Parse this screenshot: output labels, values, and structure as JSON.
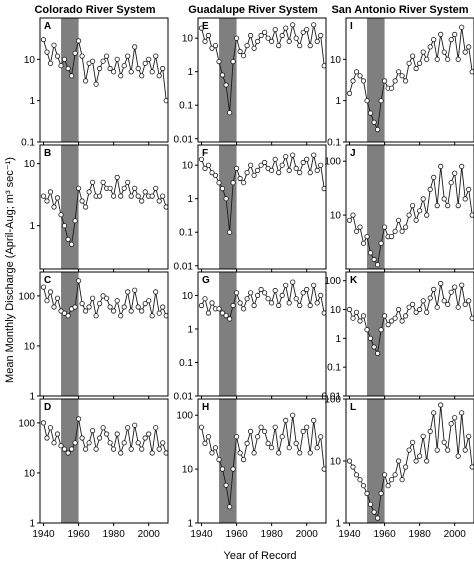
{
  "figure": {
    "ylabel": "Mean Monthly Discharge (April-Aug; m³ sec⁻¹)",
    "xlabel": "Year of Record",
    "columns": [
      "Colorado River System",
      "Guadalupe River System",
      "San Antonio River System"
    ],
    "x_ticks": [
      "1940",
      "1960",
      "1980",
      "2000"
    ],
    "shade_color": "#7f7f7f",
    "line_color": "#1a1a1a",
    "marker_fill": "#ffffff"
  },
  "chart_data": [
    {
      "type": "line",
      "label": "A",
      "column": 0,
      "row": 0,
      "xlim": [
        1938,
        2011
      ],
      "ylim": [
        0.1,
        100
      ],
      "yscale": "log",
      "ytick_labels": [
        "10",
        "1",
        "0.1"
      ],
      "shade": [
        1950,
        1960
      ],
      "x": [
        1940,
        1942,
        1944,
        1946,
        1948,
        1950,
        1952,
        1954,
        1956,
        1958,
        1960,
        1962,
        1964,
        1966,
        1968,
        1970,
        1972,
        1974,
        1976,
        1978,
        1980,
        1982,
        1984,
        1986,
        1988,
        1990,
        1992,
        1994,
        1996,
        1998,
        2000,
        2002,
        2004,
        2006,
        2008,
        2010
      ],
      "y": [
        30,
        15,
        8,
        22,
        12,
        7,
        10,
        6,
        4,
        14,
        28,
        12,
        3,
        8,
        9,
        2.5,
        6,
        9,
        12,
        6,
        5,
        10,
        4,
        7,
        12,
        5,
        20,
        6,
        4,
        8,
        10,
        5,
        12,
        4,
        6,
        1
      ]
    },
    {
      "type": "line",
      "label": "B",
      "column": 0,
      "row": 1,
      "xlim": [
        1938,
        2011
      ],
      "ylim": [
        0.2,
        20
      ],
      "yscale": "log",
      "ytick_labels": [
        "10",
        "1"
      ],
      "shade": [
        1950,
        1960
      ],
      "x": [
        1940,
        1942,
        1944,
        1946,
        1948,
        1950,
        1952,
        1954,
        1956,
        1958,
        1960,
        1962,
        1964,
        1966,
        1968,
        1970,
        1972,
        1974,
        1976,
        1978,
        1980,
        1982,
        1984,
        1986,
        1988,
        1990,
        1992,
        1994,
        1996,
        1998,
        2000,
        2002,
        2004,
        2006,
        2008,
        2010
      ],
      "y": [
        3,
        2.5,
        3.5,
        2,
        2.8,
        1.5,
        1,
        0.6,
        0.5,
        1.2,
        4,
        2.5,
        2,
        3.5,
        5,
        3,
        3,
        5,
        4,
        4,
        3,
        6,
        3,
        4,
        5,
        3,
        4,
        3,
        2.5,
        3.5,
        3,
        3,
        4,
        2.5,
        3,
        2
      ]
    },
    {
      "type": "line",
      "label": "C",
      "column": 0,
      "row": 2,
      "xlim": [
        1938,
        2011
      ],
      "ylim": [
        1,
        300
      ],
      "yscale": "log",
      "ytick_labels": [
        "100",
        "10",
        "1"
      ],
      "shade": [
        1950,
        1960
      ],
      "x": [
        1940,
        1942,
        1944,
        1946,
        1948,
        1950,
        1952,
        1954,
        1956,
        1958,
        1960,
        1962,
        1964,
        1966,
        1968,
        1970,
        1972,
        1974,
        1976,
        1978,
        1980,
        1982,
        1984,
        1986,
        1988,
        1990,
        1992,
        1994,
        1996,
        1998,
        2000,
        2002,
        2004,
        2006,
        2008,
        2010
      ],
      "y": [
        150,
        80,
        120,
        60,
        90,
        50,
        45,
        40,
        55,
        60,
        200,
        70,
        50,
        60,
        90,
        40,
        70,
        100,
        90,
        60,
        50,
        80,
        40,
        60,
        120,
        50,
        130,
        60,
        50,
        70,
        80,
        40,
        120,
        45,
        60,
        40
      ]
    },
    {
      "type": "line",
      "label": "D",
      "column": 0,
      "row": 3,
      "xlim": [
        1938,
        2011
      ],
      "ylim": [
        1,
        300
      ],
      "yscale": "log",
      "ytick_labels": [
        "100",
        "10",
        "1"
      ],
      "shade": [
        1950,
        1960
      ],
      "x": [
        1940,
        1942,
        1944,
        1946,
        1948,
        1950,
        1952,
        1954,
        1956,
        1958,
        1960,
        1962,
        1964,
        1966,
        1968,
        1970,
        1972,
        1974,
        1976,
        1978,
        1980,
        1982,
        1984,
        1986,
        1988,
        1990,
        1992,
        1994,
        1996,
        1998,
        2000,
        2002,
        2004,
        2006,
        2008,
        2010
      ],
      "y": [
        100,
        50,
        80,
        40,
        60,
        35,
        30,
        25,
        30,
        40,
        120,
        50,
        30,
        40,
        70,
        30,
        50,
        80,
        60,
        40,
        30,
        60,
        25,
        40,
        80,
        30,
        90,
        40,
        30,
        50,
        60,
        25,
        80,
        30,
        40,
        25
      ]
    },
    {
      "type": "line",
      "label": "E",
      "column": 1,
      "row": 0,
      "xlim": [
        1938,
        2011
      ],
      "ylim": [
        0.008,
        40
      ],
      "yscale": "log",
      "ytick_labels": [
        "10",
        "1",
        "0.1",
        "0.01"
      ],
      "shade": [
        1950,
        1960
      ],
      "x": [
        1940,
        1942,
        1944,
        1946,
        1948,
        1950,
        1952,
        1954,
        1956,
        1958,
        1960,
        1962,
        1964,
        1966,
        1968,
        1970,
        1972,
        1974,
        1976,
        1978,
        1980,
        1982,
        1984,
        1986,
        1988,
        1990,
        1992,
        1994,
        1996,
        1998,
        2000,
        2002,
        2004,
        2006,
        2008,
        2010
      ],
      "y": [
        20,
        8,
        12,
        5,
        6,
        2,
        0.8,
        0.4,
        0.06,
        2,
        10,
        4,
        3,
        6,
        12,
        5,
        8,
        12,
        15,
        10,
        8,
        18,
        6,
        12,
        20,
        8,
        25,
        10,
        6,
        15,
        18,
        6,
        25,
        8,
        12,
        1.5
      ]
    },
    {
      "type": "line",
      "label": "F",
      "column": 1,
      "row": 1,
      "xlim": [
        1938,
        2011
      ],
      "ylim": [
        0.008,
        40
      ],
      "yscale": "log",
      "ytick_labels": [
        "10",
        "1",
        "0.1",
        "0.01"
      ],
      "shade": [
        1950,
        1960
      ],
      "x": [
        1940,
        1942,
        1944,
        1946,
        1948,
        1950,
        1952,
        1954,
        1956,
        1958,
        1960,
        1962,
        1964,
        1966,
        1968,
        1970,
        1972,
        1974,
        1976,
        1978,
        1980,
        1982,
        1984,
        1986,
        1988,
        1990,
        1992,
        1994,
        1996,
        1998,
        2000,
        2002,
        2004,
        2006,
        2008,
        2010
      ],
      "y": [
        15,
        8,
        10,
        6,
        5,
        3,
        2,
        1,
        0.1,
        3,
        8,
        4,
        3,
        6,
        10,
        5,
        7,
        10,
        12,
        8,
        7,
        15,
        6,
        10,
        18,
        7,
        20,
        8,
        6,
        12,
        15,
        6,
        20,
        7,
        10,
        2
      ]
    },
    {
      "type": "line",
      "label": "G",
      "column": 1,
      "row": 2,
      "xlim": [
        1938,
        2011
      ],
      "ylim": [
        0.01,
        50
      ],
      "yscale": "log",
      "ytick_labels": [
        "10",
        "1",
        "0.1",
        "0.01"
      ],
      "shade": [
        1950,
        1960
      ],
      "x": [
        1940,
        1942,
        1944,
        1946,
        1948,
        1950,
        1952,
        1954,
        1956,
        1958,
        1960,
        1962,
        1964,
        1966,
        1968,
        1970,
        1972,
        1974,
        1976,
        1978,
        1980,
        1982,
        1984,
        1986,
        1988,
        1990,
        1992,
        1994,
        1996,
        1998,
        2000,
        2002,
        2004,
        2006,
        2008,
        2010
      ],
      "y": [
        5,
        8,
        3,
        6,
        4,
        4,
        3,
        2.5,
        2,
        5,
        12,
        6,
        4,
        8,
        12,
        5,
        10,
        15,
        12,
        8,
        6,
        14,
        5,
        10,
        20,
        6,
        25,
        8,
        5,
        12,
        15,
        5,
        20,
        6,
        10,
        3
      ]
    },
    {
      "type": "line",
      "label": "H",
      "column": 1,
      "row": 3,
      "xlim": [
        1938,
        2011
      ],
      "ylim": [
        1,
        200
      ],
      "yscale": "log",
      "ytick_labels": [
        "100",
        "10",
        "1"
      ],
      "shade": [
        1950,
        1960
      ],
      "x": [
        1940,
        1942,
        1944,
        1946,
        1948,
        1950,
        1952,
        1954,
        1956,
        1958,
        1960,
        1962,
        1964,
        1966,
        1968,
        1970,
        1972,
        1974,
        1976,
        1978,
        1980,
        1982,
        1984,
        1986,
        1988,
        1990,
        1992,
        1994,
        1996,
        1998,
        2000,
        2002,
        2004,
        2006,
        2008,
        2010
      ],
      "y": [
        60,
        30,
        40,
        20,
        25,
        15,
        10,
        5,
        2,
        10,
        40,
        20,
        15,
        30,
        50,
        20,
        40,
        60,
        50,
        30,
        25,
        60,
        20,
        40,
        80,
        25,
        100,
        30,
        20,
        50,
        60,
        20,
        80,
        25,
        40,
        10
      ]
    },
    {
      "type": "line",
      "label": "I",
      "column": 2,
      "row": 0,
      "xlim": [
        1938,
        2011
      ],
      "ylim": [
        0.1,
        100
      ],
      "yscale": "log",
      "ytick_labels": [
        "10",
        "1",
        "0.1"
      ],
      "shade": [
        1950,
        1960
      ],
      "x": [
        1940,
        1942,
        1944,
        1946,
        1948,
        1950,
        1952,
        1954,
        1956,
        1958,
        1960,
        1962,
        1964,
        1966,
        1968,
        1970,
        1972,
        1974,
        1976,
        1978,
        1980,
        1982,
        1984,
        1986,
        1988,
        1990,
        1992,
        1994,
        1996,
        1998,
        2000,
        2002,
        2004,
        2006,
        2008,
        2010
      ],
      "y": [
        1.5,
        3,
        5,
        4,
        3,
        1,
        0.5,
        0.3,
        0.2,
        1,
        3,
        2,
        2,
        3,
        5,
        4,
        3,
        8,
        12,
        6,
        8,
        15,
        10,
        20,
        30,
        10,
        40,
        15,
        10,
        30,
        40,
        10,
        60,
        15,
        20,
        5
      ]
    },
    {
      "type": "line",
      "label": "J",
      "column": 2,
      "row": 1,
      "xlim": [
        1938,
        2011
      ],
      "ylim": [
        1,
        200
      ],
      "yscale": "log",
      "ytick_labels": [
        "100",
        "10"
      ],
      "shade": [
        1950,
        1960
      ],
      "x": [
        1940,
        1942,
        1944,
        1946,
        1948,
        1950,
        1952,
        1954,
        1956,
        1958,
        1960,
        1962,
        1964,
        1966,
        1968,
        1970,
        1972,
        1974,
        1976,
        1978,
        1980,
        1982,
        1984,
        1986,
        1988,
        1990,
        1992,
        1994,
        1996,
        1998,
        2000,
        2002,
        2004,
        2006,
        2008,
        2010
      ],
      "y": [
        8,
        10,
        5,
        6,
        3,
        4,
        2,
        1.5,
        1.2,
        3,
        6,
        4,
        4,
        5,
        8,
        5,
        6,
        10,
        15,
        8,
        12,
        20,
        10,
        30,
        50,
        15,
        80,
        20,
        15,
        40,
        60,
        15,
        80,
        20,
        30,
        10
      ]
    },
    {
      "type": "line",
      "label": "K",
      "column": 2,
      "row": 2,
      "xlim": [
        1938,
        2011
      ],
      "ylim": [
        0.01,
        200
      ],
      "yscale": "log",
      "ytick_labels": [
        "100",
        "10",
        "1",
        "0.1",
        "0.01"
      ],
      "shade": [
        1950,
        1960
      ],
      "x": [
        1940,
        1942,
        1944,
        1946,
        1948,
        1950,
        1952,
        1954,
        1956,
        1958,
        1960,
        1962,
        1964,
        1966,
        1968,
        1970,
        1972,
        1974,
        1976,
        1978,
        1980,
        1982,
        1984,
        1986,
        1988,
        1990,
        1992,
        1994,
        1996,
        1998,
        2000,
        2002,
        2004,
        2006,
        2008,
        2010
      ],
      "y": [
        10,
        5,
        8,
        4,
        6,
        2,
        1,
        0.5,
        0.3,
        2,
        6,
        3,
        4,
        5,
        10,
        4,
        6,
        12,
        15,
        8,
        10,
        20,
        8,
        25,
        50,
        12,
        80,
        20,
        15,
        40,
        60,
        12,
        70,
        15,
        20,
        5
      ]
    },
    {
      "type": "line",
      "label": "L",
      "column": 2,
      "row": 3,
      "xlim": [
        1938,
        2011
      ],
      "ylim": [
        1,
        100
      ],
      "yscale": "log",
      "ytick_labels": [
        "100",
        "10",
        "1"
      ],
      "shade": [
        1950,
        1960
      ],
      "x": [
        1940,
        1942,
        1944,
        1946,
        1948,
        1950,
        1952,
        1954,
        1956,
        1958,
        1960,
        1962,
        1964,
        1966,
        1968,
        1970,
        1972,
        1974,
        1976,
        1978,
        1980,
        1982,
        1984,
        1986,
        1988,
        1990,
        1992,
        1994,
        1996,
        1998,
        2000,
        2002,
        2004,
        2006,
        2008,
        2010
      ],
      "y": [
        10,
        8,
        6,
        5,
        4,
        3,
        2,
        1.5,
        1.2,
        3,
        6,
        4,
        5,
        6,
        10,
        5,
        8,
        15,
        20,
        10,
        12,
        25,
        10,
        30,
        60,
        15,
        80,
        20,
        15,
        40,
        50,
        12,
        60,
        15,
        25,
        8
      ]
    }
  ]
}
